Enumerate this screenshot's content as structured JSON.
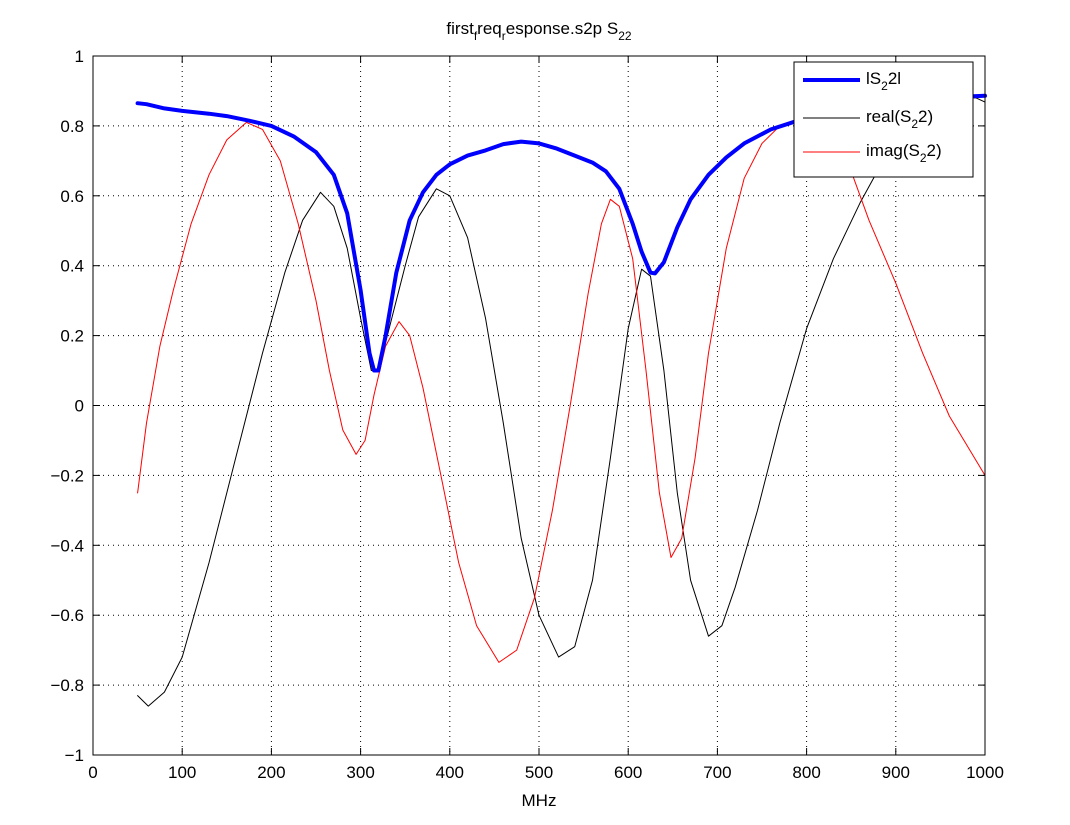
{
  "chart_data": {
    "type": "line",
    "title": {
      "main": "first",
      "sub1": "f",
      "mid": "req",
      "sub2": "r",
      "rest": "esponse.s2p S",
      "sub3": "22"
    },
    "xlabel": "MHz",
    "ylabel": "",
    "xlim": [
      0,
      1000
    ],
    "ylim": [
      -1,
      1
    ],
    "grid": true,
    "legend_position": "top-right",
    "x_ticks": [
      0,
      100,
      200,
      300,
      400,
      500,
      600,
      700,
      800,
      900,
      1000
    ],
    "x_tick_labels": [
      "0",
      "100",
      "200",
      "300",
      "400",
      "500",
      "600",
      "700",
      "800",
      "900",
      "1000"
    ],
    "y_ticks": [
      -1,
      -0.8,
      -0.6,
      -0.4,
      -0.2,
      0,
      0.2,
      0.4,
      0.6,
      0.8,
      1
    ],
    "y_tick_labels": [
      "−1",
      "−0.8",
      "−0.6",
      "−0.4",
      "−0.2",
      "0",
      "0.2",
      "0.4",
      "0.6",
      "0.8",
      "1"
    ],
    "series": [
      {
        "name": "|S22|",
        "legend": {
          "pre": "lS",
          "sub": "2",
          "post": "2l"
        },
        "color": "#0000ff",
        "width": 4,
        "points": [
          [
            50,
            0.865
          ],
          [
            60,
            0.862
          ],
          [
            80,
            0.85
          ],
          [
            100,
            0.843
          ],
          [
            130,
            0.835
          ],
          [
            150,
            0.828
          ],
          [
            175,
            0.815
          ],
          [
            200,
            0.8
          ],
          [
            225,
            0.77
          ],
          [
            250,
            0.725
          ],
          [
            270,
            0.66
          ],
          [
            285,
            0.55
          ],
          [
            300,
            0.33
          ],
          [
            310,
            0.15
          ],
          [
            315,
            0.1
          ],
          [
            320,
            0.1
          ],
          [
            328,
            0.2
          ],
          [
            340,
            0.38
          ],
          [
            355,
            0.53
          ],
          [
            370,
            0.61
          ],
          [
            385,
            0.66
          ],
          [
            400,
            0.69
          ],
          [
            420,
            0.715
          ],
          [
            440,
            0.73
          ],
          [
            460,
            0.748
          ],
          [
            480,
            0.755
          ],
          [
            500,
            0.75
          ],
          [
            520,
            0.735
          ],
          [
            540,
            0.715
          ],
          [
            560,
            0.695
          ],
          [
            575,
            0.67
          ],
          [
            590,
            0.62
          ],
          [
            605,
            0.52
          ],
          [
            615,
            0.44
          ],
          [
            625,
            0.38
          ],
          [
            630,
            0.378
          ],
          [
            640,
            0.41
          ],
          [
            655,
            0.51
          ],
          [
            670,
            0.59
          ],
          [
            690,
            0.66
          ],
          [
            710,
            0.71
          ],
          [
            730,
            0.75
          ],
          [
            760,
            0.79
          ],
          [
            790,
            0.815
          ],
          [
            820,
            0.83
          ],
          [
            850,
            0.845
          ],
          [
            880,
            0.86
          ],
          [
            920,
            0.872
          ],
          [
            960,
            0.882
          ],
          [
            1000,
            0.886
          ]
        ]
      },
      {
        "name": "real(S22)",
        "legend": {
          "pre": "real(S",
          "sub": "2",
          "post": "2)"
        },
        "color": "#000000",
        "width": 1,
        "points": [
          [
            50,
            -0.83
          ],
          [
            62,
            -0.86
          ],
          [
            80,
            -0.82
          ],
          [
            100,
            -0.72
          ],
          [
            130,
            -0.45
          ],
          [
            160,
            -0.15
          ],
          [
            190,
            0.15
          ],
          [
            215,
            0.38
          ],
          [
            235,
            0.53
          ],
          [
            255,
            0.61
          ],
          [
            270,
            0.57
          ],
          [
            285,
            0.45
          ],
          [
            300,
            0.25
          ],
          [
            312,
            0.1
          ],
          [
            320,
            0.1
          ],
          [
            335,
            0.25
          ],
          [
            350,
            0.4
          ],
          [
            365,
            0.54
          ],
          [
            385,
            0.62
          ],
          [
            400,
            0.6
          ],
          [
            420,
            0.48
          ],
          [
            440,
            0.25
          ],
          [
            460,
            -0.05
          ],
          [
            480,
            -0.38
          ],
          [
            500,
            -0.6
          ],
          [
            522,
            -0.72
          ],
          [
            540,
            -0.69
          ],
          [
            560,
            -0.5
          ],
          [
            580,
            -0.15
          ],
          [
            600,
            0.22
          ],
          [
            615,
            0.39
          ],
          [
            625,
            0.37
          ],
          [
            640,
            0.1
          ],
          [
            655,
            -0.25
          ],
          [
            670,
            -0.5
          ],
          [
            690,
            -0.66
          ],
          [
            705,
            -0.63
          ],
          [
            720,
            -0.52
          ],
          [
            745,
            -0.3
          ],
          [
            770,
            -0.05
          ],
          [
            800,
            0.22
          ],
          [
            830,
            0.42
          ],
          [
            860,
            0.58
          ],
          [
            890,
            0.72
          ],
          [
            920,
            0.8
          ],
          [
            950,
            0.85
          ],
          [
            975,
            0.88
          ],
          [
            990,
            0.88
          ],
          [
            1000,
            0.868
          ]
        ]
      },
      {
        "name": "imag(S22)",
        "legend": {
          "pre": "imag(S",
          "sub": "2",
          "post": "2)"
        },
        "color": "#ff0000",
        "width": 1,
        "points": [
          [
            50,
            -0.25
          ],
          [
            60,
            -0.05
          ],
          [
            75,
            0.17
          ],
          [
            90,
            0.33
          ],
          [
            110,
            0.52
          ],
          [
            130,
            0.66
          ],
          [
            150,
            0.76
          ],
          [
            172,
            0.81
          ],
          [
            190,
            0.79
          ],
          [
            210,
            0.7
          ],
          [
            230,
            0.52
          ],
          [
            250,
            0.3
          ],
          [
            265,
            0.1
          ],
          [
            280,
            -0.07
          ],
          [
            295,
            -0.14
          ],
          [
            305,
            -0.1
          ],
          [
            315,
            0.03
          ],
          [
            328,
            0.17
          ],
          [
            343,
            0.24
          ],
          [
            355,
            0.2
          ],
          [
            370,
            0.05
          ],
          [
            390,
            -0.2
          ],
          [
            410,
            -0.45
          ],
          [
            430,
            -0.63
          ],
          [
            455,
            -0.735
          ],
          [
            475,
            -0.7
          ],
          [
            495,
            -0.55
          ],
          [
            515,
            -0.3
          ],
          [
            535,
            0.0
          ],
          [
            555,
            0.32
          ],
          [
            570,
            0.52
          ],
          [
            580,
            0.59
          ],
          [
            590,
            0.57
          ],
          [
            605,
            0.42
          ],
          [
            620,
            0.1
          ],
          [
            635,
            -0.25
          ],
          [
            648,
            -0.435
          ],
          [
            660,
            -0.38
          ],
          [
            675,
            -0.15
          ],
          [
            690,
            0.15
          ],
          [
            710,
            0.45
          ],
          [
            730,
            0.65
          ],
          [
            750,
            0.75
          ],
          [
            770,
            0.8
          ],
          [
            790,
            0.815
          ],
          [
            810,
            0.81
          ],
          [
            830,
            0.76
          ],
          [
            850,
            0.67
          ],
          [
            870,
            0.53
          ],
          [
            900,
            0.35
          ],
          [
            930,
            0.15
          ],
          [
            960,
            -0.03
          ],
          [
            1000,
            -0.2
          ]
        ]
      }
    ]
  }
}
